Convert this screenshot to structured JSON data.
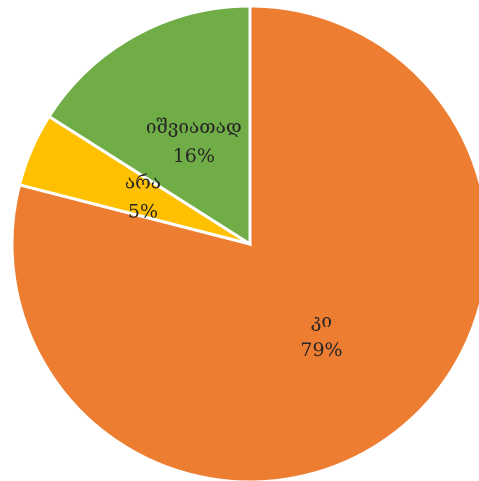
{
  "chart_data": {
    "type": "pie",
    "categories": [
      "კი",
      "არა",
      "იშვიათად"
    ],
    "values": [
      79,
      5,
      16
    ],
    "value_labels": [
      "79%",
      "5%",
      "16%"
    ],
    "colors": [
      "#ED7D31",
      "#FFC000",
      "#70AD47"
    ]
  }
}
